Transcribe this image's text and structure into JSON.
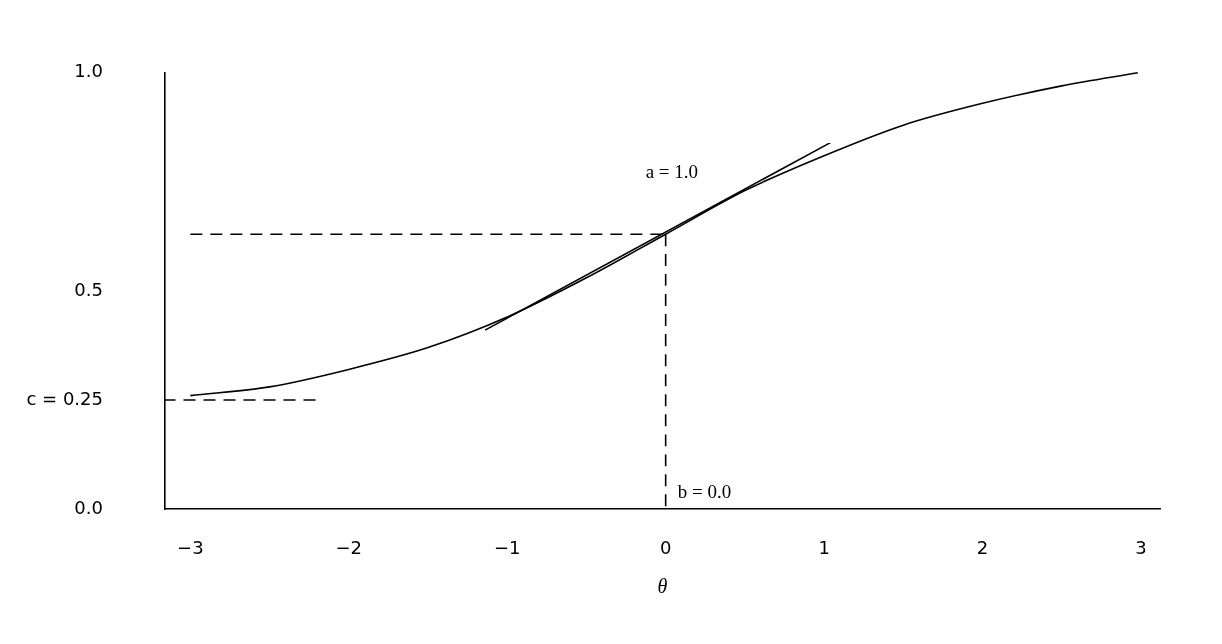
{
  "chart_data": {
    "type": "line",
    "xlabel": "θ",
    "xlim": [
      -3.16,
      3.12
    ],
    "ylim": [
      0,
      1.0
    ],
    "xticks": [
      {
        "value": -3,
        "label": "−3"
      },
      {
        "value": -2,
        "label": "−2"
      },
      {
        "value": -1,
        "label": "−1"
      },
      0,
      1,
      2,
      3
    ],
    "yticks": [
      {
        "value": 0,
        "label": "0.0"
      },
      {
        "value": 0.25,
        "label": "c = 0.25"
      },
      {
        "value": 0.5,
        "label": "0.5"
      },
      {
        "value": 1,
        "label": "1.0"
      }
    ],
    "marker": "none",
    "series": [
      {
        "color": "#000000",
        "line_style": "solid",
        "x": [
          -3,
          -2.5,
          -2,
          -1.5,
          -1,
          -0.5,
          0,
          0.5,
          1,
          1.5,
          2,
          2.5,
          2.98
        ],
        "values": [
          0.26,
          0.28,
          0.32,
          0.37,
          0.44,
          0.53,
          0.63,
          0.73,
          0.81,
          0.88,
          0.93,
          0.97,
          1.0
        ]
      },
      {
        "color": "#000000",
        "line_style": "solid",
        "x": [
          -1.14,
          1.04
        ],
        "values": [
          0.41,
          0.84
        ]
      },
      {
        "color": "#000000",
        "line_style": "dashed",
        "x": [
          -3,
          0
        ],
        "values": [
          0.63,
          0.63
        ]
      },
      {
        "color": "#000000",
        "line_style": "dashed",
        "x": [
          0,
          0
        ],
        "values": [
          0.63,
          0
        ]
      },
      {
        "color": "#000000",
        "line_style": "dashed",
        "x": [
          -2.21,
          -3.16
        ],
        "values": [
          0.25,
          0.25
        ]
      }
    ],
    "annotations": [
      {
        "text": "a = 1.0",
        "x": 0,
        "y": 0.63
      },
      {
        "text": "b = 0.0",
        "x": 0,
        "y": 0
      }
    ]
  }
}
